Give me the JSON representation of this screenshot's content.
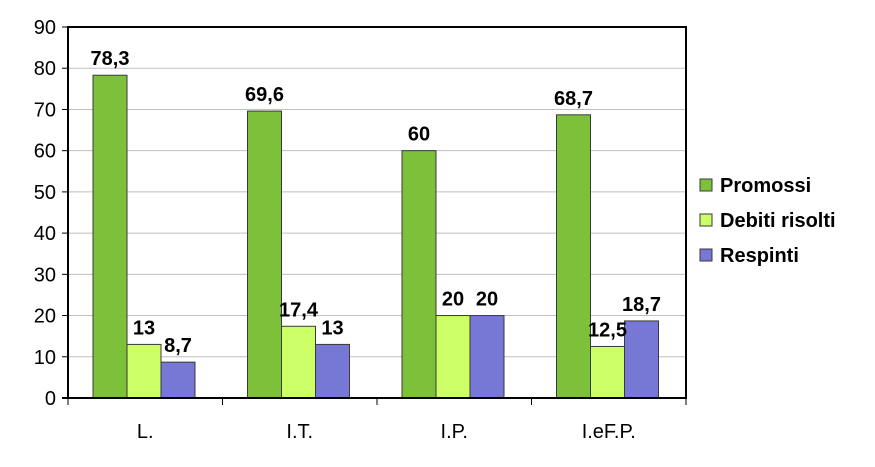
{
  "chart_data": {
    "type": "bar",
    "title": "",
    "xlabel": "",
    "ylabel": "",
    "categories": [
      "L.",
      "I.T.",
      "I.P.",
      "I.eF.P."
    ],
    "series": [
      {
        "name": "Promossi",
        "values": [
          78.3,
          69.6,
          60,
          68.7
        ],
        "labels": [
          "78,3",
          "69,6",
          "60",
          "68,7"
        ],
        "color": "#7DC13A"
      },
      {
        "name": "Debiti risolti",
        "values": [
          13,
          17.4,
          20,
          12.5
        ],
        "labels": [
          "13",
          "17,4",
          "20",
          "12,5"
        ],
        "color": "#CCFF66"
      },
      {
        "name": "Respinti",
        "values": [
          8.7,
          13,
          20,
          18.7
        ],
        "labels": [
          "8,7",
          "13",
          "20",
          "18,7"
        ],
        "color": "#7777D6"
      }
    ],
    "ylim": [
      0,
      90
    ],
    "yticks": [
      "0",
      "10",
      "20",
      "30",
      "40",
      "50",
      "60",
      "70",
      "80",
      "90"
    ],
    "grid": true,
    "legend_position": "right"
  }
}
